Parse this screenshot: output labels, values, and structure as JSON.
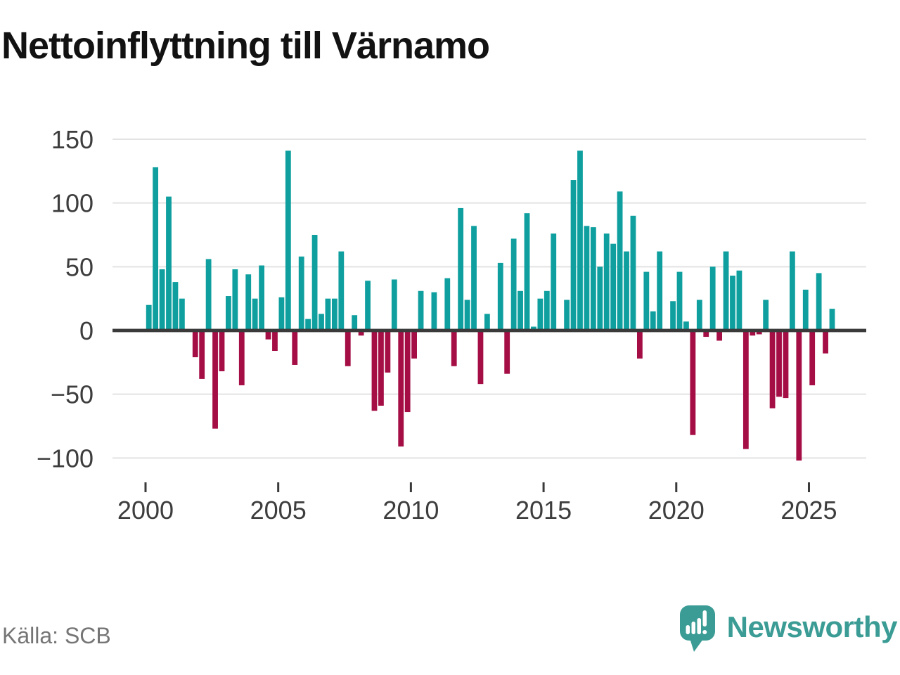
{
  "header": {
    "title": "Nettoinflyttning till Värnamo"
  },
  "footer": {
    "source": "Källa: SCB",
    "brand": "Newsworthy"
  },
  "chart_data": {
    "type": "bar",
    "title": "Nettoinflyttning till Värnamo",
    "frequency": "quarterly",
    "start_year": 2000,
    "start_quarter": 1,
    "end_label": "2025Q4",
    "x_tick_labels": [
      "2000",
      "2005",
      "2010",
      "2015",
      "2020",
      "2025"
    ],
    "x_tick_step_years": 5,
    "y_ticks": [
      150,
      100,
      50,
      0,
      -50,
      -100
    ],
    "y_tick_labels": [
      "150",
      "100",
      "50",
      "0",
      "−50",
      "−100"
    ],
    "ylim": [
      -115,
      160
    ],
    "grid": true,
    "legend": "none",
    "values": [
      20,
      128,
      48,
      105,
      38,
      25,
      0,
      -21,
      -38,
      56,
      -77,
      -32,
      27,
      48,
      -43,
      44,
      25,
      51,
      -7,
      -16,
      26,
      141,
      -27,
      58,
      9,
      75,
      13,
      25,
      25,
      62,
      -28,
      12,
      -4,
      39,
      -63,
      -59,
      -33,
      40,
      -91,
      -64,
      -22,
      31,
      0,
      30,
      0,
      41,
      -28,
      96,
      24,
      82,
      -42,
      13,
      0,
      53,
      -34,
      72,
      31,
      92,
      3,
      25,
      31,
      76,
      0,
      24,
      118,
      141,
      82,
      81,
      50,
      76,
      68,
      109,
      62,
      90,
      -22,
      46,
      15,
      62,
      0,
      23,
      46,
      7,
      -82,
      24,
      -5,
      50,
      -8,
      62,
      43,
      47,
      -93,
      -4,
      -3,
      24,
      -61,
      -52,
      -53,
      62,
      -102,
      32,
      -43,
      45,
      -18,
      17
    ],
    "colors": {
      "positive": "#0f9f9f",
      "negative": "#a50d45",
      "grid": "#e3e3e3",
      "axis": "#3a3a3a",
      "tick_label": "#3d3d3d",
      "title": "#121212",
      "source": "#757575",
      "brand": "#3b9c95"
    }
  }
}
